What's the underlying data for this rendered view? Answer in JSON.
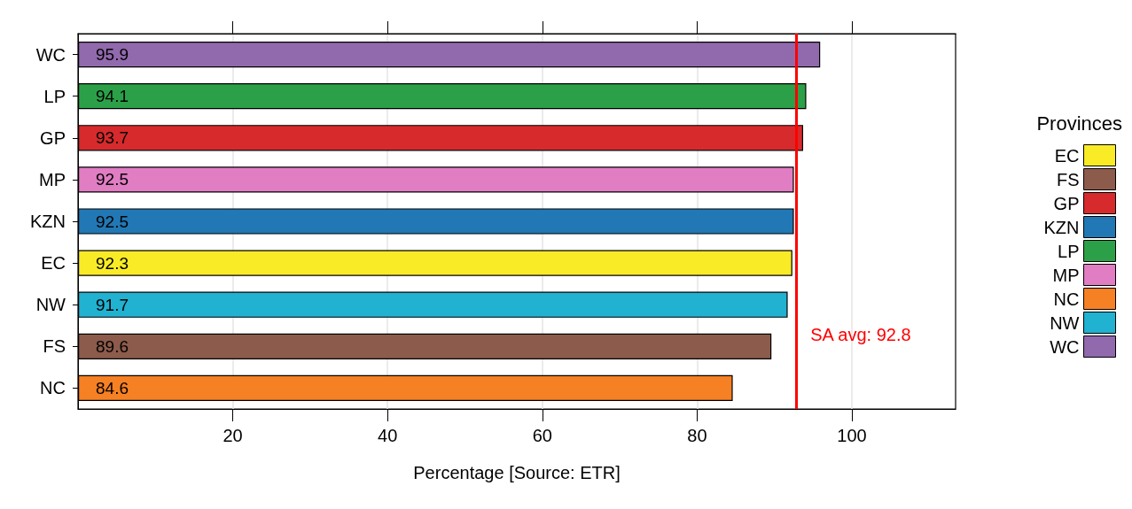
{
  "chart_data": {
    "type": "bar",
    "orientation": "horizontal",
    "stacked": true,
    "categories": [
      "WC",
      "LP",
      "GP",
      "MP",
      "KZN",
      "EC",
      "NW",
      "FS",
      "NC"
    ],
    "series": [
      {
        "name": "EC",
        "color": "#f9eb26",
        "values": [
          null,
          null,
          null,
          null,
          null,
          92.3,
          null,
          null,
          null
        ]
      },
      {
        "name": "FS",
        "color": "#8c5b4b",
        "values": [
          null,
          null,
          null,
          null,
          null,
          null,
          null,
          89.6,
          null
        ]
      },
      {
        "name": "GP",
        "color": "#d62a2c",
        "values": [
          null,
          null,
          93.7,
          null,
          null,
          null,
          null,
          null,
          null
        ]
      },
      {
        "name": "KZN",
        "color": "#2178b4",
        "values": [
          null,
          null,
          null,
          null,
          92.5,
          null,
          null,
          null,
          null
        ]
      },
      {
        "name": "LP",
        "color": "#2ca048",
        "values": [
          null,
          94.1,
          null,
          null,
          null,
          null,
          null,
          null,
          null
        ]
      },
      {
        "name": "MP",
        "color": "#e07dc3",
        "values": [
          null,
          null,
          null,
          92.5,
          null,
          null,
          null,
          null,
          null
        ]
      },
      {
        "name": "NC",
        "color": "#f68024",
        "values": [
          null,
          null,
          null,
          null,
          null,
          null,
          null,
          null,
          84.6
        ]
      },
      {
        "name": "NW",
        "color": "#21b1d1",
        "values": [
          null,
          null,
          null,
          null,
          null,
          null,
          91.7,
          null,
          null
        ]
      },
      {
        "name": "WC",
        "color": "#9169ad",
        "values": [
          95.9,
          null,
          null,
          null,
          null,
          null,
          null,
          null,
          null
        ]
      }
    ],
    "xlabel": "Percentage [Source: ETR]",
    "legend_title": "Provinces",
    "legend": "right",
    "xlim": [
      0,
      113.4
    ],
    "xticks": [
      20,
      40,
      60,
      80,
      100
    ],
    "grid": "x",
    "data_labels": true,
    "ref_lines": [
      {
        "axis": "x",
        "value": 92.8,
        "label": "SA avg: 92.8",
        "color": "#ff0000"
      }
    ]
  }
}
